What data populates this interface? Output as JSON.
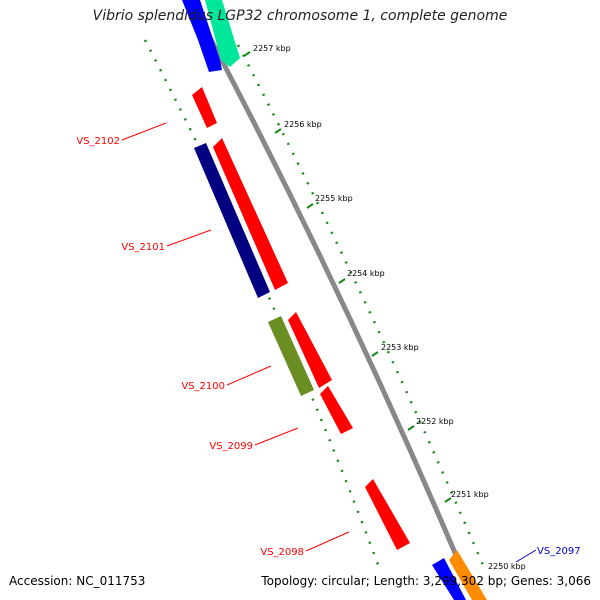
{
  "header": {
    "title": "Vibrio splendidus LGP32 chromosome 1, complete genome"
  },
  "footer": {
    "accession": "Accession: NC_011753",
    "stats": "Topology: circular; Length: 3,299,302 bp; Genes: 3,066"
  },
  "ticks": [
    "2257 kbp",
    "2256 kbp",
    "2255 kbp",
    "2254 kbp",
    "2253 kbp",
    "2252 kbp",
    "2251 kbp",
    "2250 kbp"
  ],
  "gene_labels": [
    {
      "text": "VS_2102",
      "color": "#ff0000"
    },
    {
      "text": "VS_2101",
      "color": "#ff0000"
    },
    {
      "text": "VS_2100",
      "color": "#ff0000"
    },
    {
      "text": "VS_2099",
      "color": "#ff0000"
    },
    {
      "text": "VS_2098",
      "color": "#ff0000"
    },
    {
      "text": "VS_2097",
      "color": "#0000cc"
    }
  ],
  "colors": {
    "backbone": "#888888",
    "gc_dots": "#1a8a1a",
    "cds_red": "#ff0000",
    "cds_navy": "#000080",
    "cds_blue": "#0000ff",
    "cds_green": "#6b8e23",
    "cds_teal": "#00e69a",
    "cds_orange": "#ff8c00"
  }
}
